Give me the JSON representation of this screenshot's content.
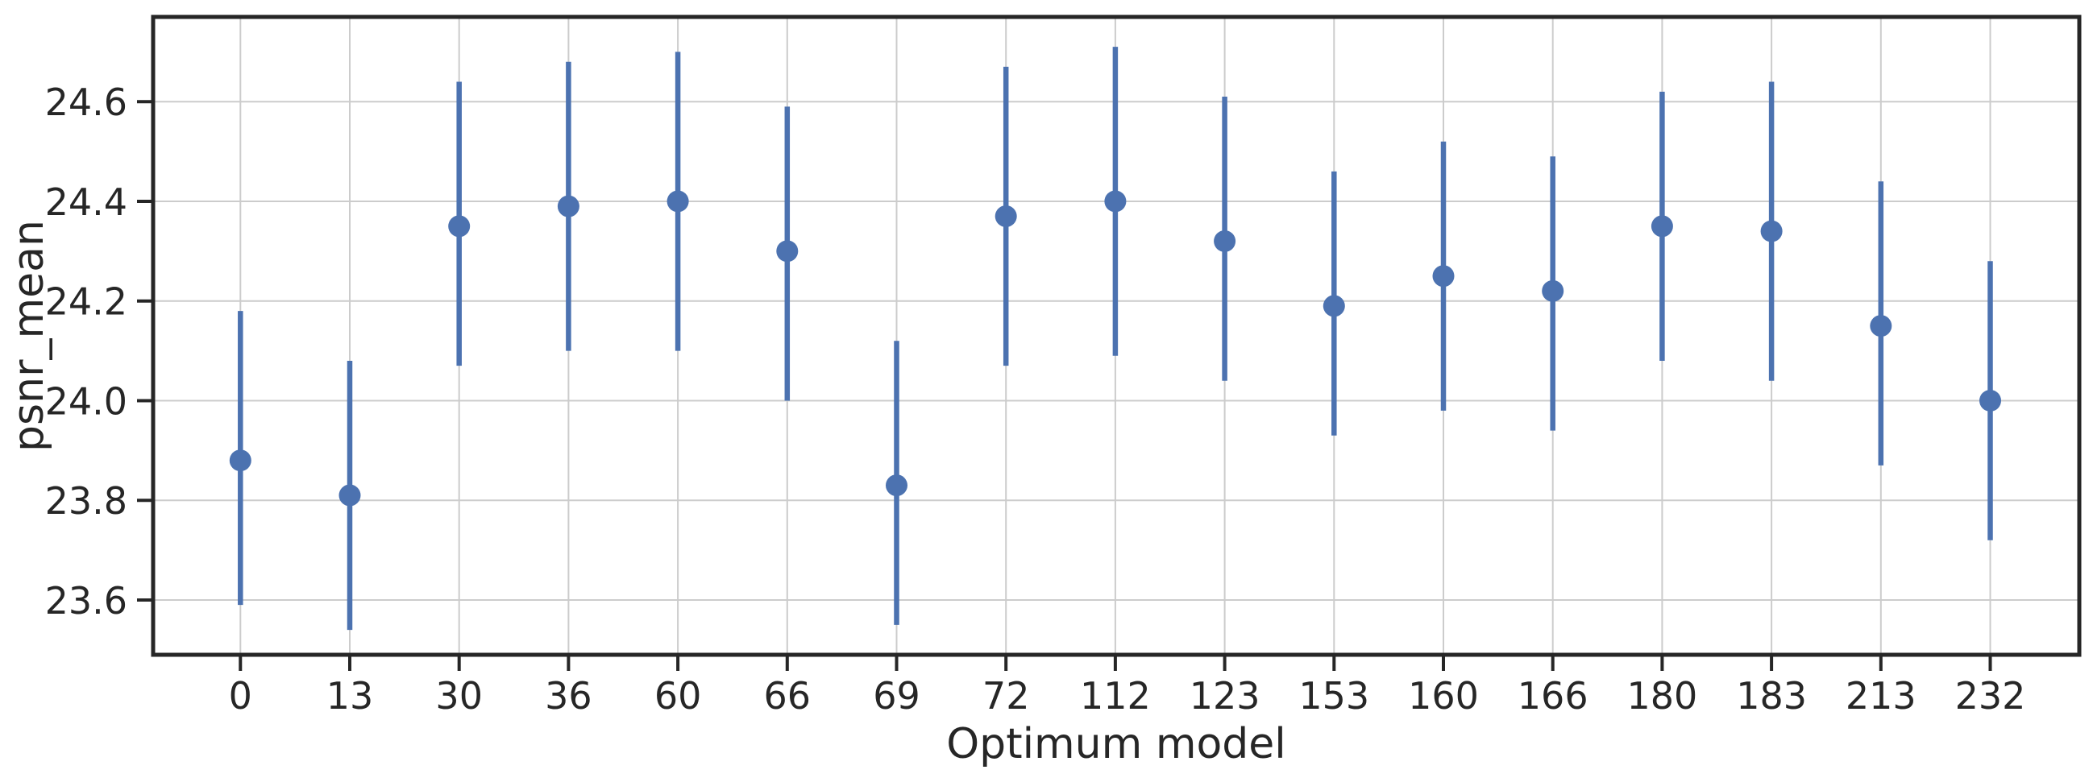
{
  "figure": {
    "background": "#ffffff"
  },
  "chart_data": {
    "type": "scatter",
    "title": "",
    "xlabel": "Optimum model",
    "ylabel": "psnr_mean",
    "categories": [
      "0",
      "13",
      "30",
      "36",
      "60",
      "66",
      "69",
      "72",
      "112",
      "123",
      "153",
      "160",
      "166",
      "180",
      "183",
      "213",
      "232"
    ],
    "series": [
      {
        "name": "psnr_mean",
        "values": [
          23.88,
          23.81,
          24.35,
          24.39,
          24.4,
          24.3,
          23.83,
          24.37,
          24.4,
          24.32,
          24.19,
          24.25,
          24.22,
          24.35,
          24.34,
          24.15,
          24.0
        ],
        "ci_low": [
          23.59,
          23.54,
          24.07,
          24.1,
          24.1,
          24.0,
          23.55,
          24.07,
          24.09,
          24.04,
          23.93,
          23.98,
          23.94,
          24.08,
          24.04,
          23.87,
          23.72
        ],
        "ci_high": [
          24.18,
          24.08,
          24.64,
          24.68,
          24.7,
          24.59,
          24.12,
          24.67,
          24.71,
          24.61,
          24.46,
          24.52,
          24.49,
          24.62,
          24.64,
          24.44,
          24.28
        ]
      }
    ],
    "yticks": [
      23.6,
      23.8,
      24.0,
      24.2,
      24.4,
      24.6
    ],
    "ylim": [
      23.49,
      24.77
    ],
    "grid": true,
    "legend": false
  },
  "colors": {
    "accent": "#4C72B0",
    "grid": "#cccccc",
    "spine": "#262626",
    "text": "#262626"
  }
}
